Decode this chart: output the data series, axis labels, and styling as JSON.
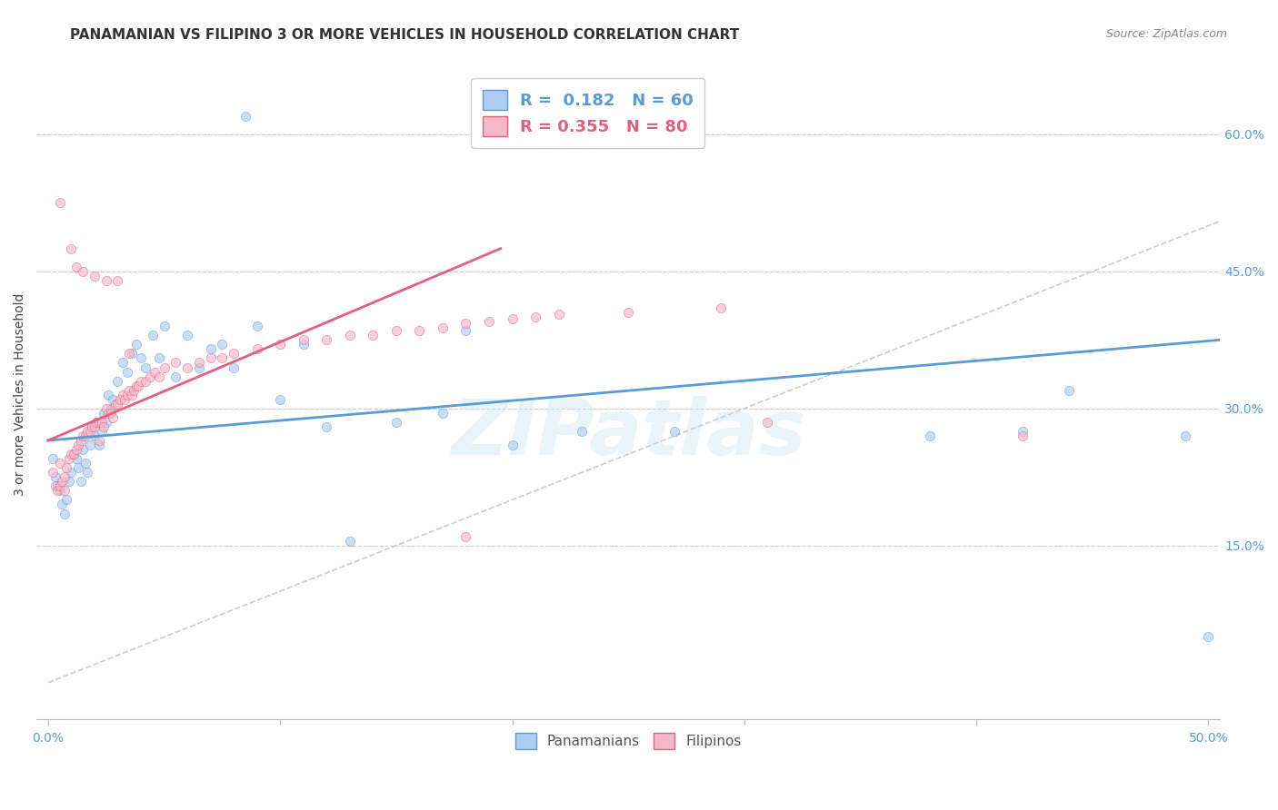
{
  "title": "PANAMANIAN VS FILIPINO 3 OR MORE VEHICLES IN HOUSEHOLD CORRELATION CHART",
  "source": "Source: ZipAtlas.com",
  "ylabel": "3 or more Vehicles in Household",
  "xlim": [
    -0.005,
    0.505
  ],
  "ylim": [
    -0.04,
    0.67
  ],
  "x_axis_min_label": "0.0%",
  "x_axis_max_label": "50.0%",
  "ytick_vals": [
    0.15,
    0.3,
    0.45,
    0.6
  ],
  "ytick_labels": [
    "15.0%",
    "30.0%",
    "45.0%",
    "60.0%"
  ],
  "legend_label1": "Panamanians",
  "legend_label2": "Filipinos",
  "R1": 0.182,
  "N1": 60,
  "R2": 0.355,
  "N2": 80,
  "color_blue_fill": "#aeccf0",
  "color_blue_edge": "#5b9bd5",
  "color_pink_fill": "#f5b8c8",
  "color_pink_edge": "#e06080",
  "line_blue": "#5b9bd5",
  "line_pink": "#e06080",
  "line_diag_color": "#cccccc",
  "watermark": "ZIPatlas",
  "scatter_size": 55,
  "scatter_alpha": 0.65,
  "blue_line_x": [
    0.0,
    0.505
  ],
  "blue_line_y": [
    0.265,
    0.375
  ],
  "pink_line_x": [
    0.0,
    0.195
  ],
  "pink_line_y": [
    0.265,
    0.475
  ],
  "diag_line_x": [
    0.0,
    0.505
  ],
  "diag_line_y": [
    0.0,
    0.505
  ],
  "pan_x": [
    0.002,
    0.003,
    0.004,
    0.005,
    0.006,
    0.007,
    0.008,
    0.009,
    0.01,
    0.011,
    0.012,
    0.013,
    0.014,
    0.015,
    0.016,
    0.017,
    0.018,
    0.019,
    0.02,
    0.021,
    0.022,
    0.023,
    0.024,
    0.025,
    0.026,
    0.027,
    0.028,
    0.03,
    0.032,
    0.034,
    0.036,
    0.038,
    0.04,
    0.042,
    0.045,
    0.048,
    0.05,
    0.055,
    0.06,
    0.065,
    0.07,
    0.075,
    0.08,
    0.09,
    0.1,
    0.11,
    0.12,
    0.13,
    0.15,
    0.17,
    0.2,
    0.23,
    0.27,
    0.085,
    0.18,
    0.42,
    0.49,
    0.5,
    0.44,
    0.38
  ],
  "pan_y": [
    0.245,
    0.225,
    0.215,
    0.21,
    0.195,
    0.185,
    0.2,
    0.22,
    0.23,
    0.25,
    0.245,
    0.235,
    0.22,
    0.255,
    0.24,
    0.23,
    0.26,
    0.28,
    0.27,
    0.285,
    0.26,
    0.275,
    0.295,
    0.285,
    0.315,
    0.3,
    0.31,
    0.33,
    0.35,
    0.34,
    0.36,
    0.37,
    0.355,
    0.345,
    0.38,
    0.355,
    0.39,
    0.335,
    0.38,
    0.345,
    0.365,
    0.37,
    0.345,
    0.39,
    0.31,
    0.37,
    0.28,
    0.155,
    0.285,
    0.295,
    0.26,
    0.275,
    0.275,
    0.62,
    0.385,
    0.275,
    0.27,
    0.05,
    0.32,
    0.27
  ],
  "fil_x": [
    0.002,
    0.003,
    0.004,
    0.005,
    0.005,
    0.006,
    0.007,
    0.007,
    0.008,
    0.009,
    0.01,
    0.011,
    0.012,
    0.013,
    0.014,
    0.015,
    0.016,
    0.017,
    0.018,
    0.019,
    0.02,
    0.021,
    0.022,
    0.022,
    0.023,
    0.024,
    0.025,
    0.026,
    0.027,
    0.028,
    0.029,
    0.03,
    0.031,
    0.032,
    0.033,
    0.034,
    0.035,
    0.036,
    0.037,
    0.038,
    0.039,
    0.04,
    0.042,
    0.044,
    0.046,
    0.048,
    0.05,
    0.055,
    0.06,
    0.065,
    0.07,
    0.075,
    0.08,
    0.09,
    0.1,
    0.11,
    0.12,
    0.13,
    0.14,
    0.15,
    0.16,
    0.17,
    0.18,
    0.19,
    0.2,
    0.21,
    0.22,
    0.25,
    0.29,
    0.005,
    0.01,
    0.012,
    0.015,
    0.02,
    0.025,
    0.03,
    0.035,
    0.18,
    0.42,
    0.31
  ],
  "fil_y": [
    0.23,
    0.215,
    0.21,
    0.24,
    0.215,
    0.22,
    0.21,
    0.225,
    0.235,
    0.245,
    0.25,
    0.25,
    0.255,
    0.26,
    0.265,
    0.27,
    0.27,
    0.275,
    0.275,
    0.28,
    0.28,
    0.285,
    0.285,
    0.265,
    0.285,
    0.28,
    0.3,
    0.295,
    0.295,
    0.29,
    0.305,
    0.305,
    0.31,
    0.315,
    0.31,
    0.315,
    0.32,
    0.315,
    0.32,
    0.325,
    0.325,
    0.33,
    0.33,
    0.335,
    0.34,
    0.335,
    0.345,
    0.35,
    0.345,
    0.35,
    0.355,
    0.355,
    0.36,
    0.365,
    0.37,
    0.375,
    0.375,
    0.38,
    0.38,
    0.385,
    0.385,
    0.388,
    0.393,
    0.395,
    0.398,
    0.4,
    0.403,
    0.405,
    0.41,
    0.525,
    0.475,
    0.455,
    0.45,
    0.445,
    0.44,
    0.44,
    0.36,
    0.16,
    0.27,
    0.285
  ]
}
